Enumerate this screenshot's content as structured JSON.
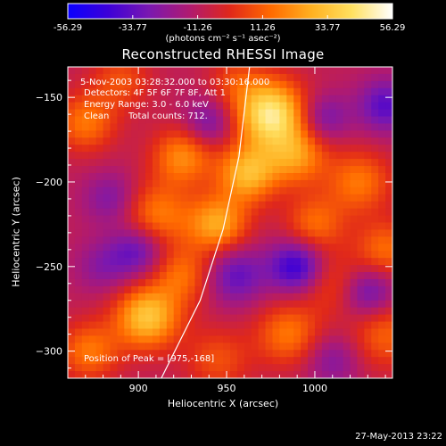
{
  "chart_data": {
    "type": "heatmap",
    "title": "Reconstructed RHESSI Image",
    "xlabel": "Heliocentric X (arcsec)",
    "ylabel": "Heliocentric Y (arcsec)",
    "xlim": [
      860,
      1044
    ],
    "ylim": [
      -316,
      -132
    ],
    "x_ticks": [
      900,
      950,
      1000
    ],
    "y_ticks": [
      -150,
      -200,
      -250,
      -300
    ],
    "colorbar": {
      "ticks": [
        "-56.29",
        "-33.77",
        "-11.26",
        "11.26",
        "33.77",
        "56.29"
      ],
      "unit_label": "(photons cm⁻² s⁻¹ asec⁻²)",
      "range": [
        -56.29,
        56.29
      ],
      "colors": [
        "#0a00ff",
        "#3d00d8",
        "#7a18b0",
        "#b01a70",
        "#e0281a",
        "#ff6a00",
        "#ffb020",
        "#ffe060",
        "#ffffff"
      ]
    },
    "annotations": {
      "time_range": "5-Nov-2003 03:28:32.000 to 03:30:16.000",
      "detectors": "Detectors: 4F 5F 6F 7F 8F, Att 1",
      "energy_range": "Energy Range: 3.0 - 6.0 keV",
      "method": "Clean",
      "total_counts": "Total counts: 712.",
      "peak_position": "Position of Peak = [975,-168]"
    },
    "peak": {
      "x": 975,
      "y": -168
    },
    "limb": [
      {
        "x": 913,
        "y": -316
      },
      {
        "x": 935,
        "y": -270
      },
      {
        "x": 948,
        "y": -228
      },
      {
        "x": 957,
        "y": -185
      },
      {
        "x": 963,
        "y": -132
      }
    ],
    "sources": [
      {
        "x": 975,
        "y": -160,
        "v": 56,
        "s": 14
      },
      {
        "x": 962,
        "y": -195,
        "v": 40,
        "s": 12
      },
      {
        "x": 990,
        "y": -185,
        "v": 30,
        "s": 12
      },
      {
        "x": 1025,
        "y": -200,
        "v": 26,
        "s": 13
      },
      {
        "x": 925,
        "y": -185,
        "v": 30,
        "s": 12
      },
      {
        "x": 870,
        "y": -165,
        "v": 26,
        "s": 12
      },
      {
        "x": 910,
        "y": -220,
        "v": 28,
        "s": 14
      },
      {
        "x": 945,
        "y": -225,
        "v": 36,
        "s": 12
      },
      {
        "x": 925,
        "y": -255,
        "v": 24,
        "s": 12
      },
      {
        "x": 905,
        "y": -280,
        "v": 44,
        "s": 13
      },
      {
        "x": 872,
        "y": -300,
        "v": 26,
        "s": 12
      },
      {
        "x": 1000,
        "y": -225,
        "v": 24,
        "s": 12
      },
      {
        "x": 1040,
        "y": -240,
        "v": 24,
        "s": 12
      },
      {
        "x": 1010,
        "y": -260,
        "v": 18,
        "s": 13
      },
      {
        "x": 985,
        "y": -290,
        "v": 26,
        "s": 13
      },
      {
        "x": 1040,
        "y": -290,
        "v": 22,
        "s": 14
      },
      {
        "x": 945,
        "y": -305,
        "v": 18,
        "s": 13
      },
      {
        "x": 890,
        "y": -140,
        "v": 18,
        "s": 12
      },
      {
        "x": 955,
        "y": -140,
        "v": 14,
        "s": 11
      },
      {
        "x": 900,
        "y": -240,
        "v": -26,
        "s": 11
      },
      {
        "x": 885,
        "y": -210,
        "v": -18,
        "s": 11
      },
      {
        "x": 940,
        "y": -165,
        "v": -20,
        "s": 10
      },
      {
        "x": 1005,
        "y": -162,
        "v": -20,
        "s": 10
      },
      {
        "x": 1040,
        "y": -155,
        "v": -26,
        "s": 11
      },
      {
        "x": 990,
        "y": -250,
        "v": -36,
        "s": 11
      },
      {
        "x": 1030,
        "y": -265,
        "v": -26,
        "s": 11
      },
      {
        "x": 955,
        "y": -255,
        "v": -24,
        "s": 12
      },
      {
        "x": 1010,
        "y": -305,
        "v": -16,
        "s": 11
      },
      {
        "x": 880,
        "y": -250,
        "v": -14,
        "s": 11
      }
    ]
  },
  "footer_timestamp": "27-May-2013 23:22"
}
